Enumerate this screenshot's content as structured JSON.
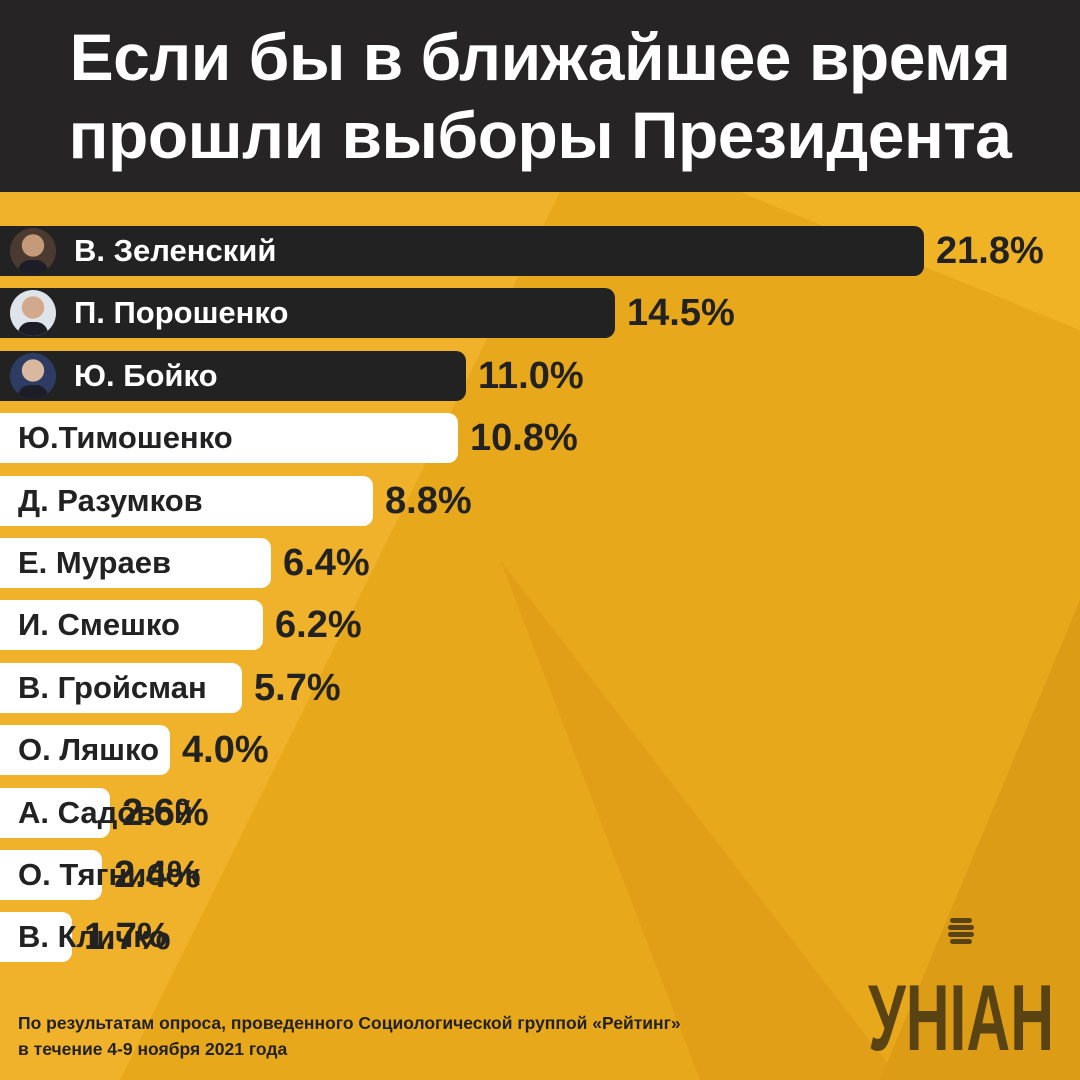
{
  "title_lines": [
    "Если бы в ближайшее время",
    "прошли выборы Президента"
  ],
  "chart_data": {
    "type": "bar",
    "orientation": "horizontal",
    "title": "Если бы в ближайшее время прошли выборы Президента",
    "categories": [
      "В. Зеленский",
      "П. Порошенко",
      "Ю. Бойко",
      "Ю.Тимошенко",
      "Д. Разумков",
      "Е. Мураев",
      "И. Смешко",
      "В. Гройсман",
      "О. Ляшко",
      "А. Садовой",
      "О. Тягнибок",
      "В. Кличко"
    ],
    "values": [
      21.8,
      14.5,
      11.0,
      10.8,
      8.8,
      6.4,
      6.2,
      5.7,
      4.0,
      2.6,
      2.4,
      1.7
    ],
    "value_labels": [
      "21.8%",
      "14.5%",
      "11.0%",
      "10.8%",
      "8.8%",
      "6.4%",
      "6.2%",
      "5.7%",
      "4.0%",
      "2.6%",
      "2.4%",
      "1.7%"
    ],
    "highlighted_with_photo": [
      true,
      true,
      true,
      false,
      false,
      false,
      false,
      false,
      false,
      false,
      false,
      false
    ],
    "unit": "%",
    "grid": false,
    "legend": "none"
  },
  "colors": {
    "background": "#e8a81c",
    "header": "#262424",
    "dark_bar": "#232222",
    "light_bar": "#ffffff",
    "logo": "#5a4312"
  },
  "logo": {
    "text": "УНІАН",
    "icon": "microphone-icon"
  },
  "footnote": {
    "line1": "По результатам опроса, проведенного Социологической группой «Рейтинг»",
    "line2": "в течение 4-9 ноября 2021 года"
  }
}
